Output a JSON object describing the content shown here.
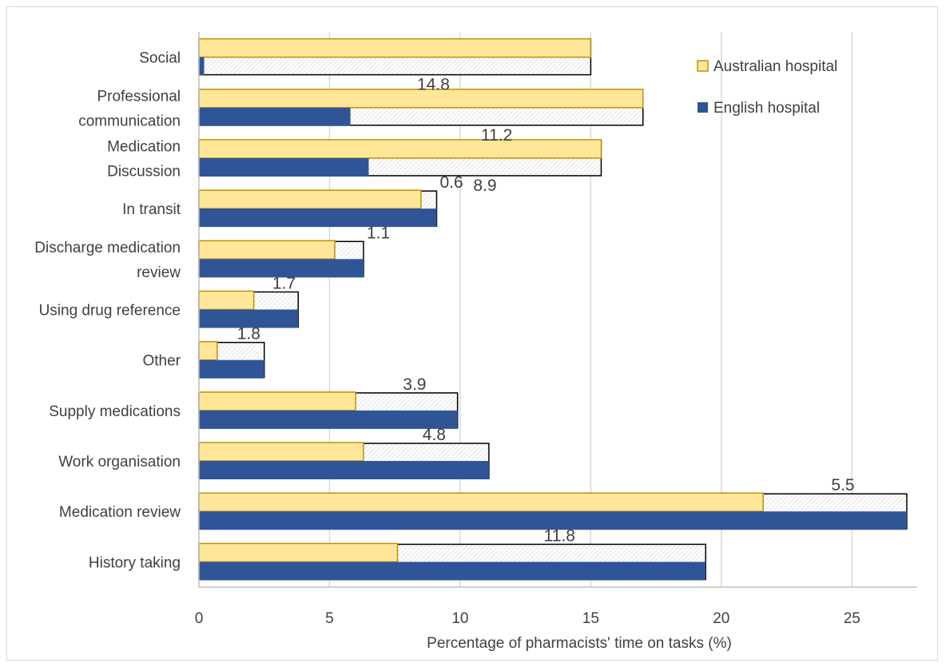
{
  "chart_data": {
    "type": "bar",
    "orientation": "horizontal",
    "categories": [
      "Social",
      "Professional communication",
      "Medication Discussion",
      "In transit",
      "Discharge medication review",
      "Using drug reference",
      "Other",
      "Supply medications",
      "Work organisation",
      "Medication review",
      "History taking"
    ],
    "category_label_lines": [
      [
        "Social"
      ],
      [
        "Professional ",
        "communication"
      ],
      [
        "Medication",
        "Discussion"
      ],
      [
        "In transit"
      ],
      [
        "Discharge medication",
        "review"
      ],
      [
        "Using drug reference"
      ],
      [
        "Other"
      ],
      [
        "Supply medications"
      ],
      [
        "Work organisation"
      ],
      [
        "Medication review"
      ],
      [
        "History taking"
      ]
    ],
    "series": [
      {
        "name": "Australian hospital",
        "values": [
          15.0,
          17.0,
          15.4,
          8.5,
          5.2,
          2.1,
          0.7,
          6.0,
          6.3,
          21.6,
          7.6
        ],
        "color": "#ffe699",
        "border": "#bf9000"
      },
      {
        "name": "English hospital",
        "values": [
          0.2,
          5.8,
          6.5,
          9.1,
          6.3,
          3.8,
          2.5,
          9.9,
          11.1,
          27.1,
          19.4
        ],
        "color": "#2f5597"
      }
    ],
    "differences": [
      "14.8",
      "11.2",
      "8.9",
      "0.6",
      "1.1",
      "1.7",
      "1.8",
      "3.9",
      "4.8",
      "5.5",
      "11.8"
    ],
    "xlabel": "Percentage of pharmacists' time on tasks (%)",
    "xlim": [
      0,
      27.5
    ],
    "xticks": [
      "0",
      "5",
      "10",
      "15",
      "20",
      "25"
    ],
    "grid": "vertical",
    "legend_position": "top-right"
  }
}
